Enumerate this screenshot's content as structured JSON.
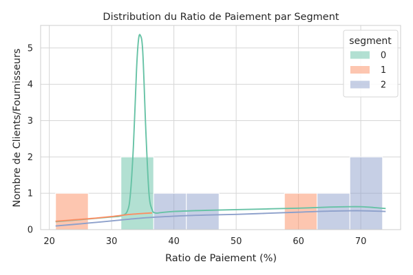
{
  "chart_data": {
    "type": "bar",
    "title": "Distribution du Ratio de Paiement par Segment",
    "xlabel": "Ratio de Paiement (%)",
    "ylabel": "Nombre de Clients/Fournisseurs",
    "xlim": [
      18.6,
      76.4
    ],
    "ylim": [
      0,
      5.62
    ],
    "xticks": [
      20,
      30,
      40,
      50,
      60,
      70
    ],
    "yticks": [
      0,
      1,
      2,
      3,
      4,
      5
    ],
    "grid": true,
    "legend": {
      "title": "segment",
      "placement": "top-right"
    },
    "bin_edges": [
      21.0,
      26.25,
      31.5,
      36.75,
      42.0,
      47.25,
      52.5,
      57.75,
      63.0,
      68.25,
      73.5
    ],
    "series": [
      {
        "name": "0",
        "color": "#66c2a5",
        "counts": [
          0,
          0,
          2,
          0,
          0,
          0,
          0,
          0,
          0,
          0
        ],
        "kde": {
          "x": [
            21,
            26,
            30,
            31.5,
            32.5,
            33,
            33.5,
            34,
            34.3,
            34.6,
            35,
            35.5,
            36,
            36.5,
            37,
            38,
            40,
            45,
            50,
            55,
            60,
            65,
            68,
            70,
            72,
            74
          ],
          "y": [
            0.22,
            0.29,
            0.35,
            0.38,
            0.5,
            0.95,
            2.3,
            4.4,
            5.2,
            5.35,
            4.9,
            2.7,
            1.0,
            0.55,
            0.46,
            0.47,
            0.5,
            0.53,
            0.55,
            0.57,
            0.59,
            0.62,
            0.63,
            0.63,
            0.61,
            0.58
          ]
        }
      },
      {
        "name": "1",
        "color": "#fc8d62",
        "counts": [
          1,
          0,
          0,
          0,
          0,
          0,
          0,
          1,
          0,
          0
        ],
        "kde": {
          "x": [
            21,
            24,
            27,
            30,
            33,
            36.5
          ],
          "y": [
            0.23,
            0.27,
            0.31,
            0.36,
            0.42,
            0.46
          ]
        }
      },
      {
        "name": "2",
        "color": "#8da0cb",
        "counts": [
          0,
          0,
          0,
          1,
          1,
          0,
          0,
          0,
          1,
          2
        ],
        "kde": {
          "x": [
            21,
            25,
            30,
            35,
            40,
            45,
            50,
            55,
            60,
            65,
            70,
            74
          ],
          "y": [
            0.1,
            0.16,
            0.24,
            0.32,
            0.37,
            0.4,
            0.42,
            0.45,
            0.48,
            0.51,
            0.52,
            0.5
          ]
        }
      }
    ]
  }
}
